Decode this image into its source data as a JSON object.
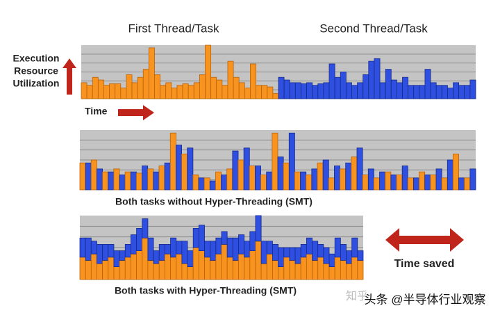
{
  "labels": {
    "first": "First Thread/Task",
    "second": "Second Thread/Task",
    "execution": "Execution",
    "resource": "Resource",
    "utilization": "Utilization",
    "time": "Time",
    "without": "Both tasks without Hyper-Threading (SMT)",
    "with": "Both tasks with Hyper-Threading (SMT)",
    "saved": "Time saved",
    "watermark1": "知乎",
    "watermark2": "头条 @半导体行业观察"
  },
  "panels": [
    {
      "type": "sequential",
      "series": [
        {
          "color": "#f7931e",
          "values": [
            30,
            25,
            40,
            35,
            25,
            28,
            28,
            20,
            45,
            30,
            40,
            55,
            95,
            45,
            25,
            30,
            20,
            25,
            28,
            25,
            30,
            45,
            100,
            40,
            35,
            25,
            70,
            40,
            30,
            20,
            65,
            25,
            25,
            22,
            10
          ]
        },
        {
          "color": "#2f4fe0",
          "values": [
            40,
            35,
            30,
            30,
            28,
            30,
            25,
            28,
            30,
            65,
            40,
            50,
            30,
            25,
            30,
            45,
            70,
            75,
            30,
            55,
            35,
            30,
            40,
            25,
            25,
            25,
            55,
            30,
            25,
            25,
            20,
            30,
            25,
            25,
            35
          ]
        }
      ]
    },
    {
      "type": "interleaved",
      "series": [
        {
          "color": "#f7931e",
          "values": [
            45,
            50,
            30,
            35,
            30,
            28,
            35,
            40,
            95,
            60,
            25,
            20,
            30,
            35,
            50,
            40,
            25,
            95,
            45,
            30,
            25,
            45,
            20,
            35,
            55,
            25,
            20,
            30,
            25,
            20,
            30,
            25,
            20,
            60,
            20
          ]
        },
        {
          "color": "#2f4fe0",
          "values": [
            45,
            35,
            30,
            25,
            30,
            40,
            30,
            45,
            75,
            70,
            20,
            15,
            25,
            65,
            70,
            40,
            30,
            55,
            95,
            30,
            35,
            50,
            40,
            45,
            70,
            35,
            30,
            25,
            40,
            20,
            25,
            35,
            50,
            20,
            35
          ]
        }
      ]
    },
    {
      "type": "stacked",
      "series": [
        {
          "color": "#f7931e",
          "values": [
            35,
            30,
            40,
            25,
            30,
            35,
            20,
            30,
            35,
            40,
            45,
            65,
            30,
            25,
            30,
            40,
            35,
            40,
            25,
            20,
            50,
            45,
            35,
            30,
            40,
            55,
            35,
            30,
            40,
            35,
            45,
            60,
            25,
            40,
            30,
            20,
            35,
            30,
            25,
            35,
            40,
            30,
            35,
            25,
            20,
            35,
            30,
            25,
            35,
            30
          ]
        },
        {
          "color": "#2f4fe0",
          "values": [
            30,
            35,
            20,
            30,
            25,
            20,
            25,
            15,
            20,
            30,
            35,
            30,
            35,
            20,
            25,
            15,
            30,
            20,
            35,
            25,
            30,
            40,
            25,
            30,
            25,
            20,
            30,
            35,
            30,
            25,
            30,
            40,
            35,
            20,
            25,
            30,
            15,
            20,
            25,
            20,
            25,
            30,
            20,
            25,
            20,
            30,
            25,
            20,
            30,
            15
          ]
        }
      ]
    }
  ]
}
